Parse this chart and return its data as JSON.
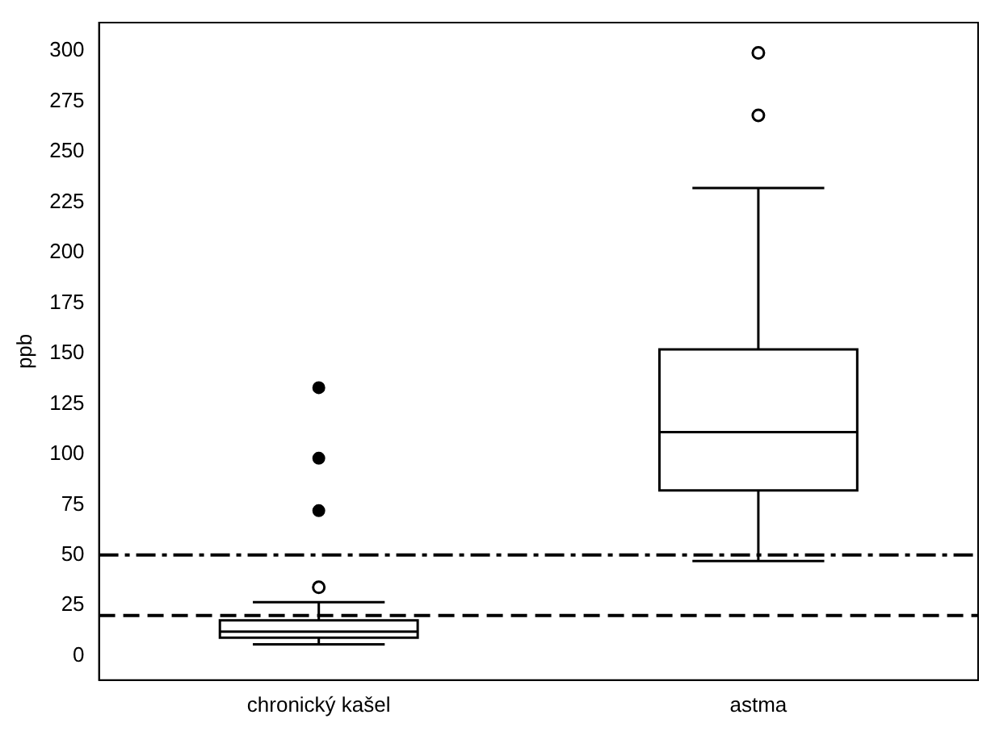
{
  "chart_data": {
    "type": "box",
    "ylabel": "ppb",
    "categories": [
      "chronický kašel",
      "astma"
    ],
    "boxes": [
      {
        "low": 5.7,
        "q1": 9,
        "median": 12,
        "q3": 17.6,
        "high": 26.6,
        "outliers": [
          34
        ]
      },
      {
        "low": 47,
        "q1": 82,
        "median": 111,
        "q3": 152,
        "high": 232,
        "outliers": [
          268,
          299
        ]
      }
    ],
    "series": [
      {
        "type": "scatter",
        "color": "#000000",
        "x": [
          "chronický kašel",
          "chronický kašel",
          "chronický kašel"
        ],
        "values": [
          72,
          98,
          133
        ]
      }
    ],
    "ylim": [
      -12,
      314
    ],
    "yticks": [
      0,
      25,
      50,
      75,
      100,
      125,
      150,
      175,
      200,
      225,
      250,
      275,
      300
    ],
    "ref_lines": [
      {
        "axis": "y",
        "value": 50,
        "color": "#000000",
        "line_style": "dashdot"
      },
      {
        "axis": "y",
        "value": 20,
        "color": "#000000",
        "line_style": "dashed"
      }
    ],
    "grid": false,
    "legend": false
  }
}
